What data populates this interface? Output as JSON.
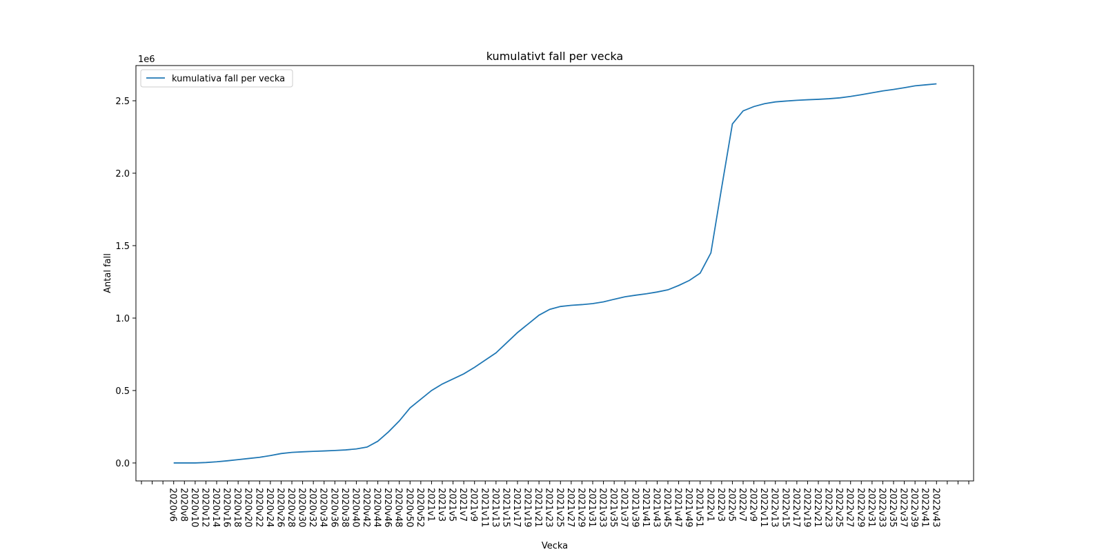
{
  "chart_data": {
    "type": "line",
    "title": "kumulativt fall per vecka",
    "xlabel": "Vecka",
    "ylabel": "Antal fall",
    "y_offset_label": "1e6",
    "categories": [
      null,
      null,
      null,
      "2020v6",
      "2020v8",
      "2020v10",
      "2020v12",
      "2020v14",
      "2020v16",
      "2020v18",
      "2020v20",
      "2020v22",
      "2020v24",
      "2020v26",
      "2020v28",
      "2020v30",
      "2020v32",
      "2020v34",
      "2020v36",
      "2020v38",
      "2020v40",
      "2020v42",
      "2020v44",
      "2020v46",
      "2020v48",
      "2020v50",
      "2020v52",
      "2021v1",
      "2021v3",
      "2021v5",
      "2021v7",
      "2021v9",
      "2021v11",
      "2021v13",
      "2021v15",
      "2021v17",
      "2021v19",
      "2021v21",
      "2021v23",
      "2021v25",
      "2021v27",
      "2021v29",
      "2021v31",
      "2021v33",
      "2021v35",
      "2021v37",
      "2021v39",
      "2021v41",
      "2021v43",
      "2021v45",
      "2021v47",
      "2021v49",
      "2021v51",
      "2022v1",
      "2022v3",
      "2022v5",
      "2022v7",
      "2022v9",
      "2022v11",
      "2022v13",
      "2022v15",
      "2022v17",
      "2022v19",
      "2022v21",
      "2022v23",
      "2022v25",
      "2022v27",
      "2022v29",
      "2022v31",
      "2022v33",
      "2022v35",
      "2022v37",
      "2022v39",
      "2022v41",
      "2022v43",
      null,
      null,
      null
    ],
    "series": [
      {
        "name": "kumulativa fall per vecka",
        "color": "#1f77b4",
        "values": [
          null,
          null,
          null,
          0,
          0,
          0,
          3000,
          8000,
          15000,
          23000,
          31000,
          39000,
          51000,
          65000,
          73000,
          77000,
          80000,
          83000,
          86000,
          90000,
          97000,
          110000,
          150000,
          215000,
          290000,
          380000,
          440000,
          500000,
          545000,
          580000,
          615000,
          660000,
          710000,
          760000,
          830000,
          900000,
          960000,
          1020000,
          1060000,
          1080000,
          1088000,
          1093000,
          1100000,
          1112000,
          1130000,
          1147000,
          1158000,
          1168000,
          1180000,
          1195000,
          1225000,
          1260000,
          1310000,
          1450000,
          1900000,
          2340000,
          2430000,
          2460000,
          2480000,
          2492000,
          2498000,
          2503000,
          2507000,
          2510000,
          2514000,
          2520000,
          2530000,
          2542000,
          2555000,
          2568000,
          2578000,
          2590000,
          2603000,
          2610000,
          2617000,
          null,
          null,
          null
        ]
      }
    ],
    "ylim": [
      -124000,
      2743000
    ],
    "yticks": [
      {
        "value": 0,
        "label": "0.0"
      },
      {
        "value": 500000,
        "label": "0.5"
      },
      {
        "value": 1000000,
        "label": "1.0"
      },
      {
        "value": 1500000,
        "label": "1.5"
      },
      {
        "value": 2000000,
        "label": "2.0"
      },
      {
        "value": 2500000,
        "label": "2.5"
      }
    ],
    "legend": "upper left",
    "grid": false
  }
}
